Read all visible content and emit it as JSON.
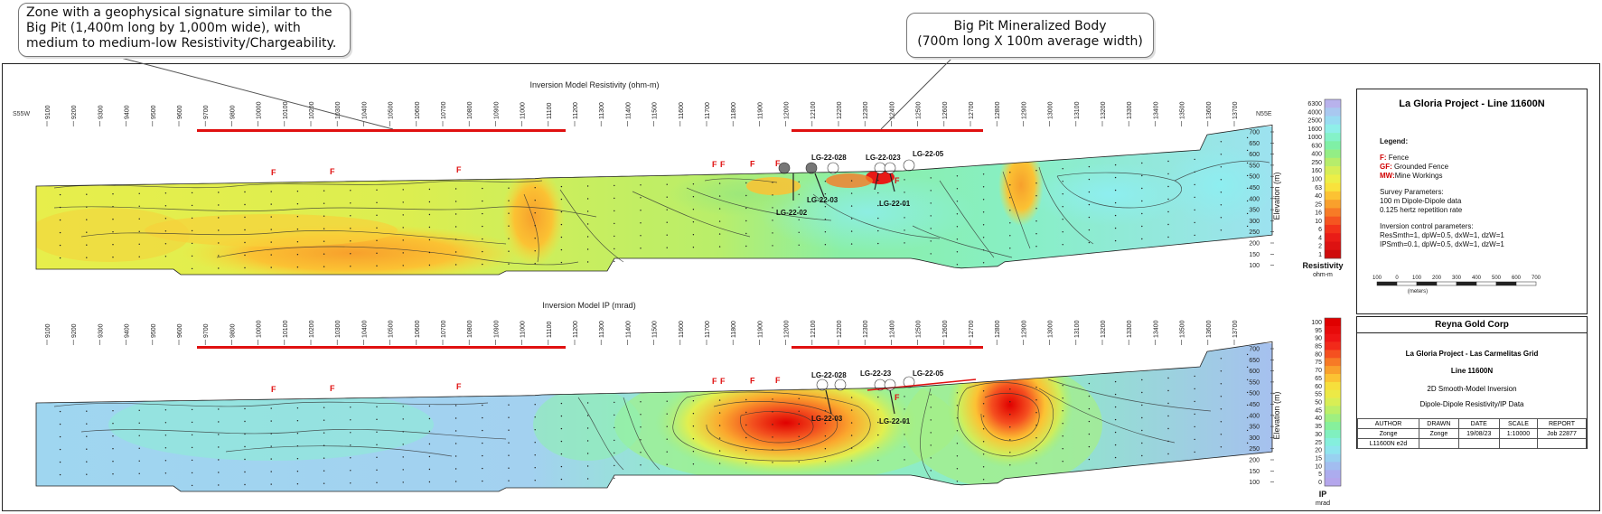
{
  "callouts": {
    "left_lines": [
      "Zone with a geophysical signature similar to the",
      "Big Pit (1,400m long by 1,000m wide), with",
      "medium to medium-low Resistivity/Chargeability."
    ],
    "right_lines": [
      "Big Pit Mineralized Body",
      "(700m long X 100m average width)"
    ]
  },
  "resistivity_panel": {
    "title": "Inversion Model Resistivity (ohm-m)",
    "left_direction": "S55W",
    "right_direction": "N55E",
    "axis_label": "Elevation (m)"
  },
  "ip_panel": {
    "title": "Inversion Model IP (mrad)",
    "axis_label": "Elevation (m)"
  },
  "stations": [
    "9100",
    "9200",
    "9300",
    "9400",
    "9500",
    "9600",
    "9700",
    "9800",
    "10000",
    "10100",
    "10200",
    "10300",
    "10400",
    "10500",
    "10600",
    "10700",
    "10800",
    "10900",
    "11000",
    "11100",
    "11200",
    "11300",
    "11400",
    "11500",
    "11600",
    "11700",
    "11800",
    "11900",
    "12000",
    "12100",
    "12200",
    "12300",
    "12400",
    "12500",
    "12600",
    "12700",
    "12800",
    "12900",
    "13000",
    "13100",
    "13200",
    "13300",
    "13400",
    "13500",
    "13600",
    "13700"
  ],
  "elevation_ticks": [
    "700",
    "650",
    "600",
    "550",
    "500",
    "450",
    "400",
    "350",
    "300",
    "250",
    "200",
    "150",
    "100"
  ],
  "fence_label": "F",
  "drillholes": {
    "resistivity_top": [
      "LG-22-028",
      "LG-22-023",
      "LG-22-05"
    ],
    "resistivity_bottom": [
      "LG-22-02",
      "LG-22-03",
      "LG-22-01"
    ],
    "ip_top": [
      "LG-22-028",
      "LG-22-23",
      "LG-22-05"
    ],
    "ip_bottom": [
      "LG-22-03",
      "LG-22-01"
    ]
  },
  "resistivity_scale": {
    "ticks": [
      "6300",
      "4000",
      "2500",
      "1600",
      "1000",
      "630",
      "400",
      "250",
      "160",
      "100",
      "63",
      "40",
      "25",
      "16",
      "10",
      "6",
      "4",
      "2",
      "1"
    ],
    "colors": [
      "#b8b2ec",
      "#a9c8f0",
      "#99dcf2",
      "#8fefe9",
      "#84f2c8",
      "#7ff0a6",
      "#93ee85",
      "#b6ed6b",
      "#d6ee56",
      "#ecef47",
      "#f9e23c",
      "#fcc233",
      "#f9a02c",
      "#f77b26",
      "#f55520",
      "#f2321a",
      "#e91c17",
      "#dd1212",
      "#cf0b0b"
    ],
    "label": "Resistivity",
    "unit": "ohm-m"
  },
  "ip_scale": {
    "ticks": [
      "100",
      "95",
      "90",
      "85",
      "80",
      "75",
      "70",
      "65",
      "60",
      "55",
      "50",
      "45",
      "40",
      "35",
      "30",
      "25",
      "20",
      "15",
      "10",
      "5",
      "0"
    ],
    "colors": [
      "#e00000",
      "#e80a0a",
      "#ee1414",
      "#f22a1a",
      "#f55020",
      "#f77a26",
      "#f9a02c",
      "#fbc233",
      "#f6df3c",
      "#ece946",
      "#d8ee55",
      "#bcef68",
      "#9fef80",
      "#86f09c",
      "#80f0bf",
      "#85efdd",
      "#8ee5ee",
      "#98d1f0",
      "#a2bdf0",
      "#acacee",
      "#b4a6ec"
    ],
    "label": "IP",
    "unit": "mrad"
  },
  "scale_bar": {
    "ticks": [
      "100",
      "0",
      "100",
      "200",
      "300",
      "400",
      "500",
      "600",
      "700"
    ],
    "unit": "(meters)"
  },
  "title_block": {
    "title": "La Gloria Project - Line 11600N",
    "legend_heading": "Legend:",
    "legend_items": [
      {
        "code": "F:",
        "label": "Fence"
      },
      {
        "code": "GF:",
        "label": "Grounded Fence"
      },
      {
        "code": "MW:",
        "label": "Mine Workings"
      }
    ],
    "survey_heading": "Survey Parameters:",
    "survey_lines": [
      "100 m Dipole-Dipole data",
      "0.125 hertz repetition rate"
    ],
    "inversion_heading": "Inversion control parameters:",
    "inversion_lines": [
      "ResSmth=1, dpW=0.5, dxW=1, dzW=1",
      "IPSmth=0.1, dpW=0.5, dxW=1, dzW=1"
    ]
  },
  "report_block": {
    "company": "Reyna Gold Corp",
    "project": "La Gloria Project - Las Carmelitas Grid",
    "line": "Line 11600N",
    "inversion": "2D Smooth-Model Inversion",
    "data": "Dipole-Dipole Resistivity/IP Data",
    "headers": [
      "AUTHOR",
      "DRAWN",
      "DATE",
      "SCALE",
      "REPORT"
    ],
    "values": [
      "Zonge",
      "Zonge",
      "19/08/23",
      "1:10000",
      "Job 22877"
    ],
    "file": "L11600N e2d"
  },
  "colors": {
    "highlight_red": "#e01010",
    "frame": "#222222"
  }
}
